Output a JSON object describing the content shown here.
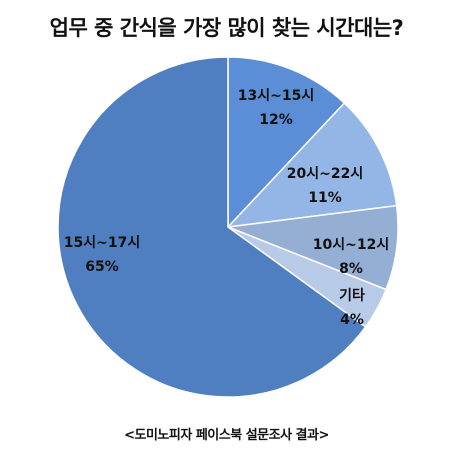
{
  "chart_data": {
    "type": "pie",
    "title": "업무 중 간식을 가장 많이 찾는 시간대는?",
    "source": "<도미노피자 페이스북 설문조사 결과>",
    "start_angle_deg": 0,
    "direction": "clockwise",
    "slices": [
      {
        "label": "13시~15시",
        "value": 12,
        "value_text": "12%",
        "color": "#5b8ed6"
      },
      {
        "label": "20시~22시",
        "value": 11,
        "value_text": "11%",
        "color": "#93b6e6"
      },
      {
        "label": "10시~12시",
        "value": 8,
        "value_text": "8%",
        "color": "#95aed4"
      },
      {
        "label": "기타",
        "value": 4,
        "value_text": "4%",
        "color": "#b7cbe8"
      },
      {
        "label": "15시~17시",
        "value": 65,
        "value_text": "65%",
        "color": "#4f7fc0"
      }
    ]
  }
}
